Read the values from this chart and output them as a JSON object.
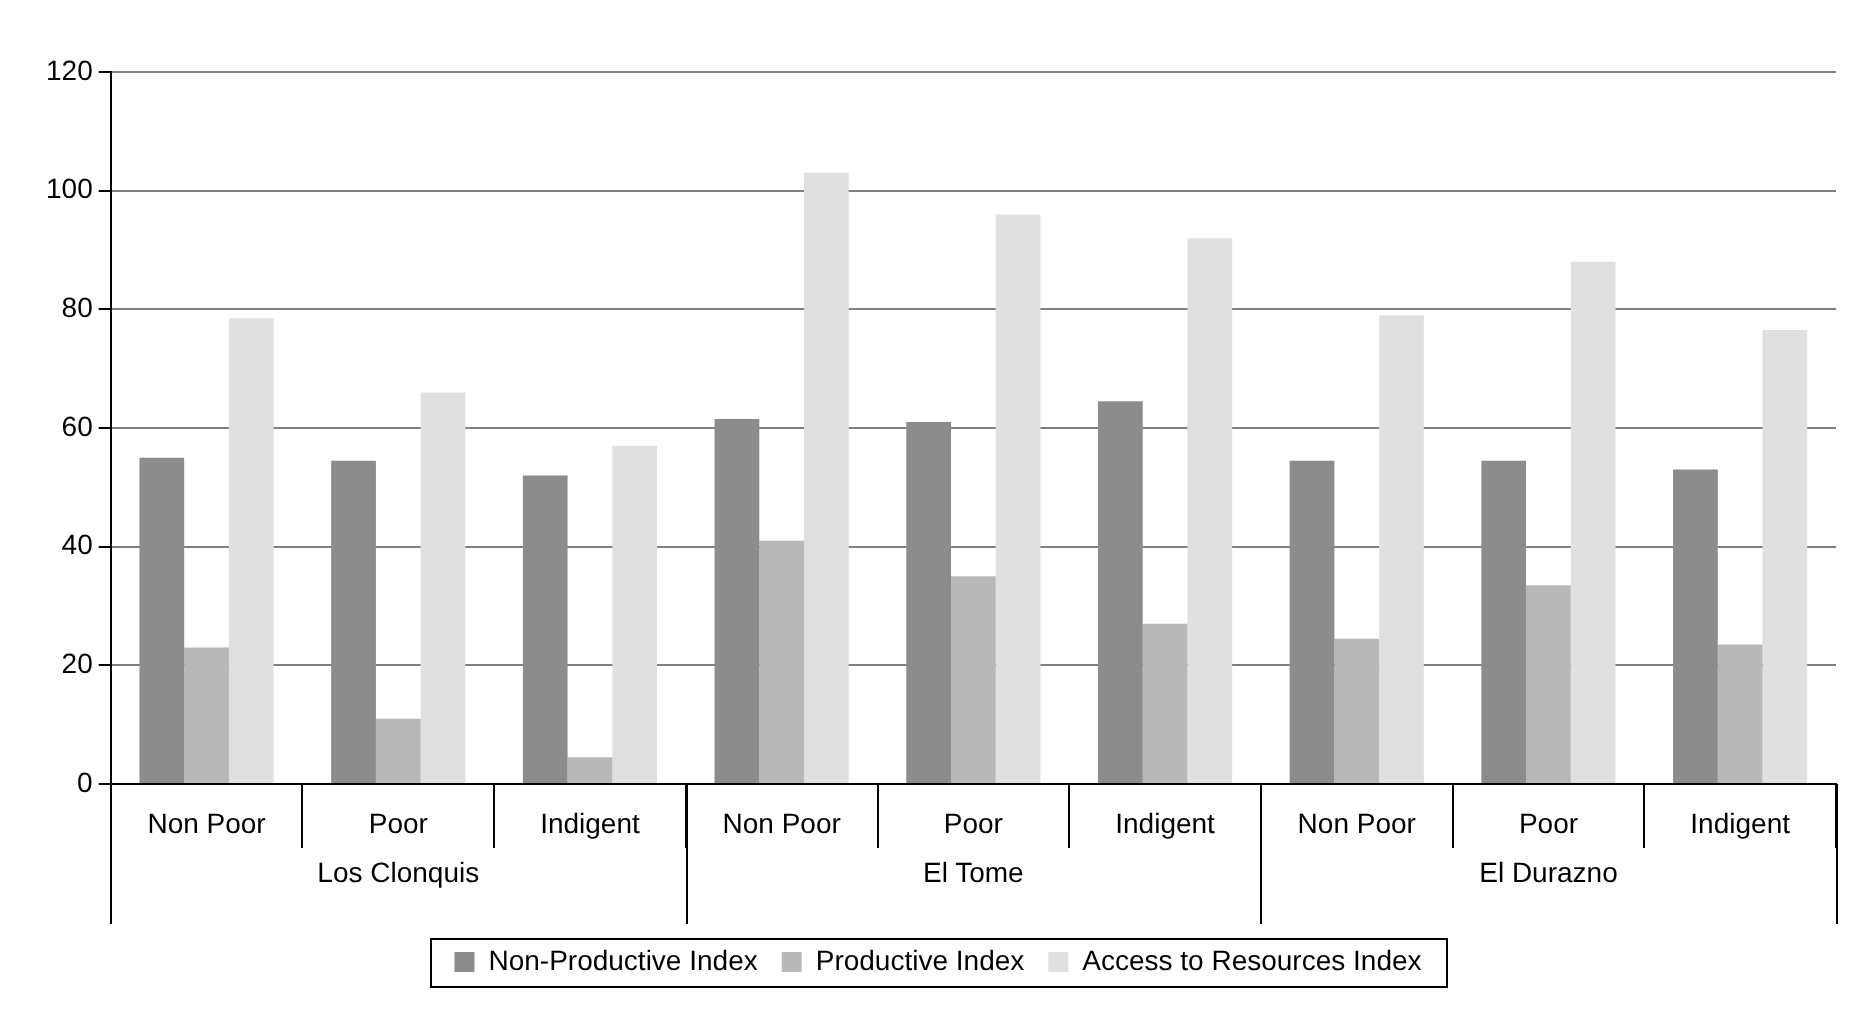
{
  "chart_data": {
    "type": "bar",
    "categories": [
      "Non Poor",
      "Poor",
      "Indigent",
      "Non Poor",
      "Poor",
      "Indigent",
      "Non Poor",
      "Poor",
      "Indigent"
    ],
    "series": [
      {
        "name": "Non-Productive Index",
        "color": "#8c8c8c",
        "values": [
          55,
          54.5,
          52,
          61.5,
          61,
          64.5,
          54.5,
          54.5,
          53
        ]
      },
      {
        "name": "Productive Index",
        "color": "#b8b8b8",
        "values": [
          23,
          11,
          4.5,
          41,
          35,
          27,
          24.5,
          33.5,
          23.5
        ]
      },
      {
        "name": "Access to Resources Index",
        "color": "#e0e0e0",
        "values": [
          78.5,
          66,
          57,
          103,
          96,
          92,
          79,
          88,
          76.5
        ]
      }
    ],
    "annotations": [
      "Los Clonquis",
      "El Tome",
      "El Durazno"
    ],
    "ylim": [
      0,
      120
    ],
    "yticks": [
      0,
      20,
      40,
      60,
      80,
      100,
      120
    ],
    "grid": "y",
    "legend": "bottom"
  }
}
